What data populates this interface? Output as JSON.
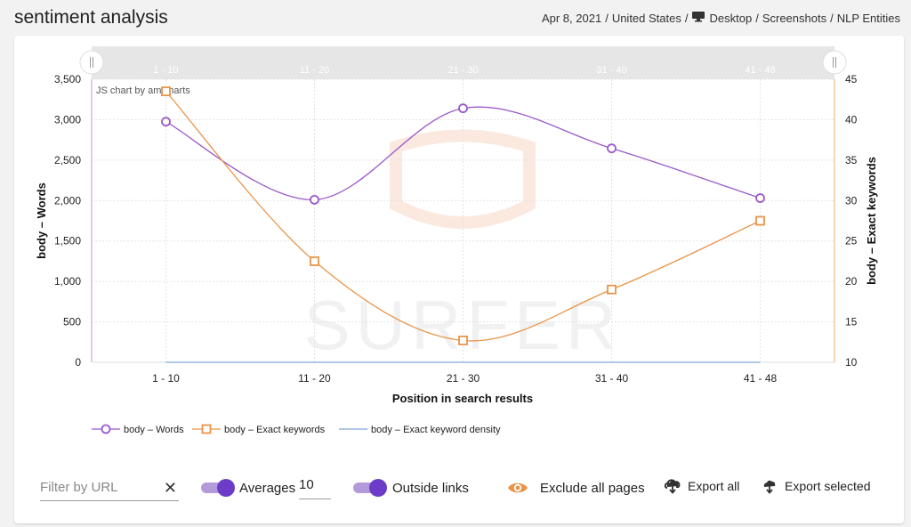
{
  "header": {
    "title": "sentiment analysis",
    "crumbs": [
      "Apr 8, 2021",
      "United States",
      "Desktop",
      "Screenshots",
      "NLP Entities"
    ],
    "device_icon": "monitor-icon"
  },
  "chart_data": {
    "type": "line",
    "credit": "JS chart by amCharts",
    "watermark": "SURFER",
    "categories": [
      "1 - 10",
      "11 - 20",
      "21 - 30",
      "31 - 40",
      "41 - 48"
    ],
    "xlabel": "Position in search results",
    "ylabel_left": "body – Words",
    "ylabel_right": "body – Exact keywords",
    "ylim_left": [
      0,
      3500
    ],
    "yticks_left": [
      0,
      500,
      1000,
      1500,
      2000,
      2500,
      3000,
      3500
    ],
    "yticks_left_labels": [
      "0",
      "500",
      "1,000",
      "1,500",
      "2,000",
      "2,500",
      "3,000",
      "3,500"
    ],
    "ylim_right": [
      10,
      45
    ],
    "yticks_right": [
      10,
      15,
      20,
      25,
      30,
      35,
      40,
      45
    ],
    "grid": true,
    "legend_position": "bottom-left",
    "series": [
      {
        "name": "body – Words",
        "axis": "left",
        "color": "#9b59c9",
        "marker": "circle",
        "values": [
          2975,
          2010,
          3140,
          2645,
          2030
        ]
      },
      {
        "name": "body – Exact keywords",
        "axis": "right",
        "color": "#e8954a",
        "marker": "square",
        "values": [
          43.5,
          22.5,
          12.7,
          19.0,
          27.5
        ]
      },
      {
        "name": "body – Exact keyword density",
        "axis": "right",
        "color": "#7fa8d6",
        "marker": "line",
        "values": [
          0,
          0,
          0,
          0,
          0
        ]
      }
    ]
  },
  "controls": {
    "filter_placeholder": "Filter by URL",
    "filter_value": "",
    "averages_label": "Averages",
    "averages_value": "10",
    "outside_links_label": "Outside links",
    "exclude_label": "Exclude all pages",
    "export_all_label": "Export all",
    "export_selected_label": "Export selected",
    "accent_color": "#6c3cc8",
    "eye_color": "#e8954a"
  }
}
